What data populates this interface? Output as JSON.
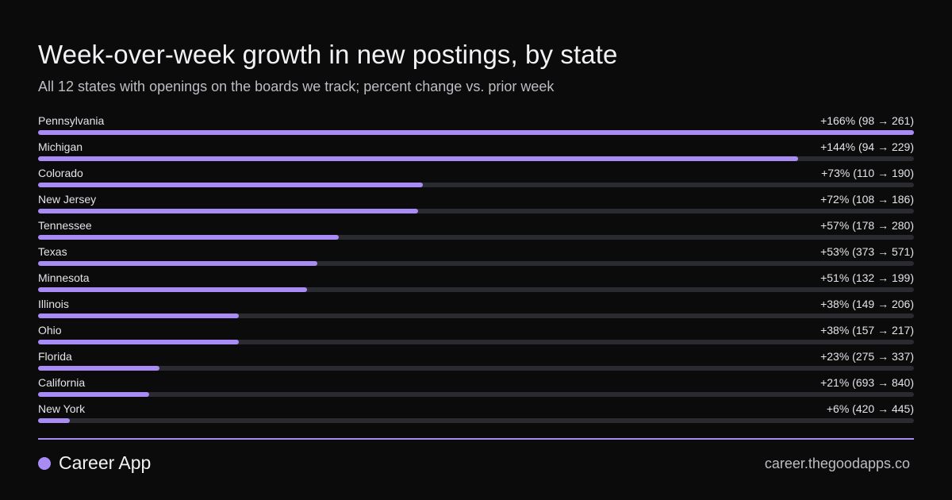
{
  "header": {
    "title": "Week-over-week  growth in new postings, by state",
    "subtitle": "All 12 states with openings on the boards we track; percent change vs. prior week"
  },
  "footer": {
    "brand": "Career App",
    "url": "career.thegoodapps.co"
  },
  "colors": {
    "accent": "#a98bf5",
    "track": "#2a2a31",
    "background": "#0b0b0c"
  },
  "chart_data": {
    "type": "bar",
    "orientation": "horizontal",
    "title": "Week-over-week  growth in new postings, by state",
    "subtitle": "All 12 states with openings on the boards we track; percent change vs. prior week",
    "xlim": [
      0,
      166
    ],
    "categories": [
      "Pennsylvania",
      "Michigan",
      "Colorado",
      "New Jersey",
      "Tennessee",
      "Texas",
      "Minnesota",
      "Illinois",
      "Ohio",
      "Florida",
      "California",
      "New York"
    ],
    "values": [
      166,
      144,
      73,
      72,
      57,
      53,
      51,
      38,
      38,
      23,
      21,
      6
    ],
    "prior_week": [
      98,
      94,
      110,
      108,
      178,
      373,
      132,
      149,
      157,
      275,
      693,
      420
    ],
    "current_week": [
      261,
      229,
      190,
      186,
      280,
      571,
      199,
      206,
      217,
      337,
      840,
      445
    ],
    "data_labels": [
      "+166% (98 → 261)",
      "+144% (94 → 229)",
      "+73% (110 → 190)",
      "+72% (108 → 186)",
      "+57% (178 → 280)",
      "+53% (373 → 571)",
      "+51% (132 → 199)",
      "+38% (149 → 206)",
      "+38% (157 → 217)",
      "+23% (275 → 337)",
      "+21% (693 → 840)",
      "+6% (420 → 445)"
    ]
  }
}
